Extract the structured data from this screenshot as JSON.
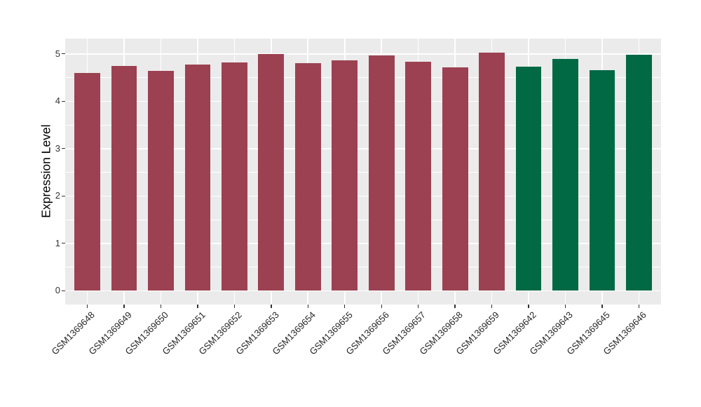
{
  "chart_data": {
    "type": "bar",
    "title": "",
    "xlabel": "",
    "ylabel": "Expression Level",
    "ylim": [
      0,
      5.29
    ],
    "yticks": [
      0,
      1,
      2,
      3,
      4,
      5
    ],
    "minor_gridlines": [
      0.5,
      1.5,
      2.5,
      3.5,
      4.5
    ],
    "grid": "on",
    "legend_position": "none",
    "panel_bg": "#EBEBEB",
    "grid_color": "#FFFFFF",
    "axis_text_color": "#333333",
    "groups": {
      "g1": {
        "name": "red-group",
        "color": "#9C4151"
      },
      "g2": {
        "name": "green-group",
        "color": "#026945"
      }
    },
    "categories": [
      "GSM1369648",
      "GSM1369649",
      "GSM1369650",
      "GSM1369651",
      "GSM1369652",
      "GSM1369653",
      "GSM1369654",
      "GSM1369655",
      "GSM1369656",
      "GSM1369657",
      "GSM1369658",
      "GSM1369659",
      "GSM1369642",
      "GSM1369643",
      "GSM1369645",
      "GSM1369646"
    ],
    "bars": [
      {
        "label": "GSM1369648",
        "value": 4.59,
        "group": "g1"
      },
      {
        "label": "GSM1369649",
        "value": 4.74,
        "group": "g1"
      },
      {
        "label": "GSM1369650",
        "value": 4.64,
        "group": "g1"
      },
      {
        "label": "GSM1369651",
        "value": 4.77,
        "group": "g1"
      },
      {
        "label": "GSM1369652",
        "value": 4.82,
        "group": "g1"
      },
      {
        "label": "GSM1369653",
        "value": 4.99,
        "group": "g1"
      },
      {
        "label": "GSM1369654",
        "value": 4.81,
        "group": "g1"
      },
      {
        "label": "GSM1369655",
        "value": 4.86,
        "group": "g1"
      },
      {
        "label": "GSM1369656",
        "value": 4.97,
        "group": "g1"
      },
      {
        "label": "GSM1369657",
        "value": 4.84,
        "group": "g1"
      },
      {
        "label": "GSM1369658",
        "value": 4.71,
        "group": "g1"
      },
      {
        "label": "GSM1369659",
        "value": 5.03,
        "group": "g1"
      },
      {
        "label": "GSM1369642",
        "value": 4.73,
        "group": "g2"
      },
      {
        "label": "GSM1369643",
        "value": 4.89,
        "group": "g2"
      },
      {
        "label": "GSM1369645",
        "value": 4.66,
        "group": "g2"
      },
      {
        "label": "GSM1369646",
        "value": 4.98,
        "group": "g2"
      }
    ]
  }
}
